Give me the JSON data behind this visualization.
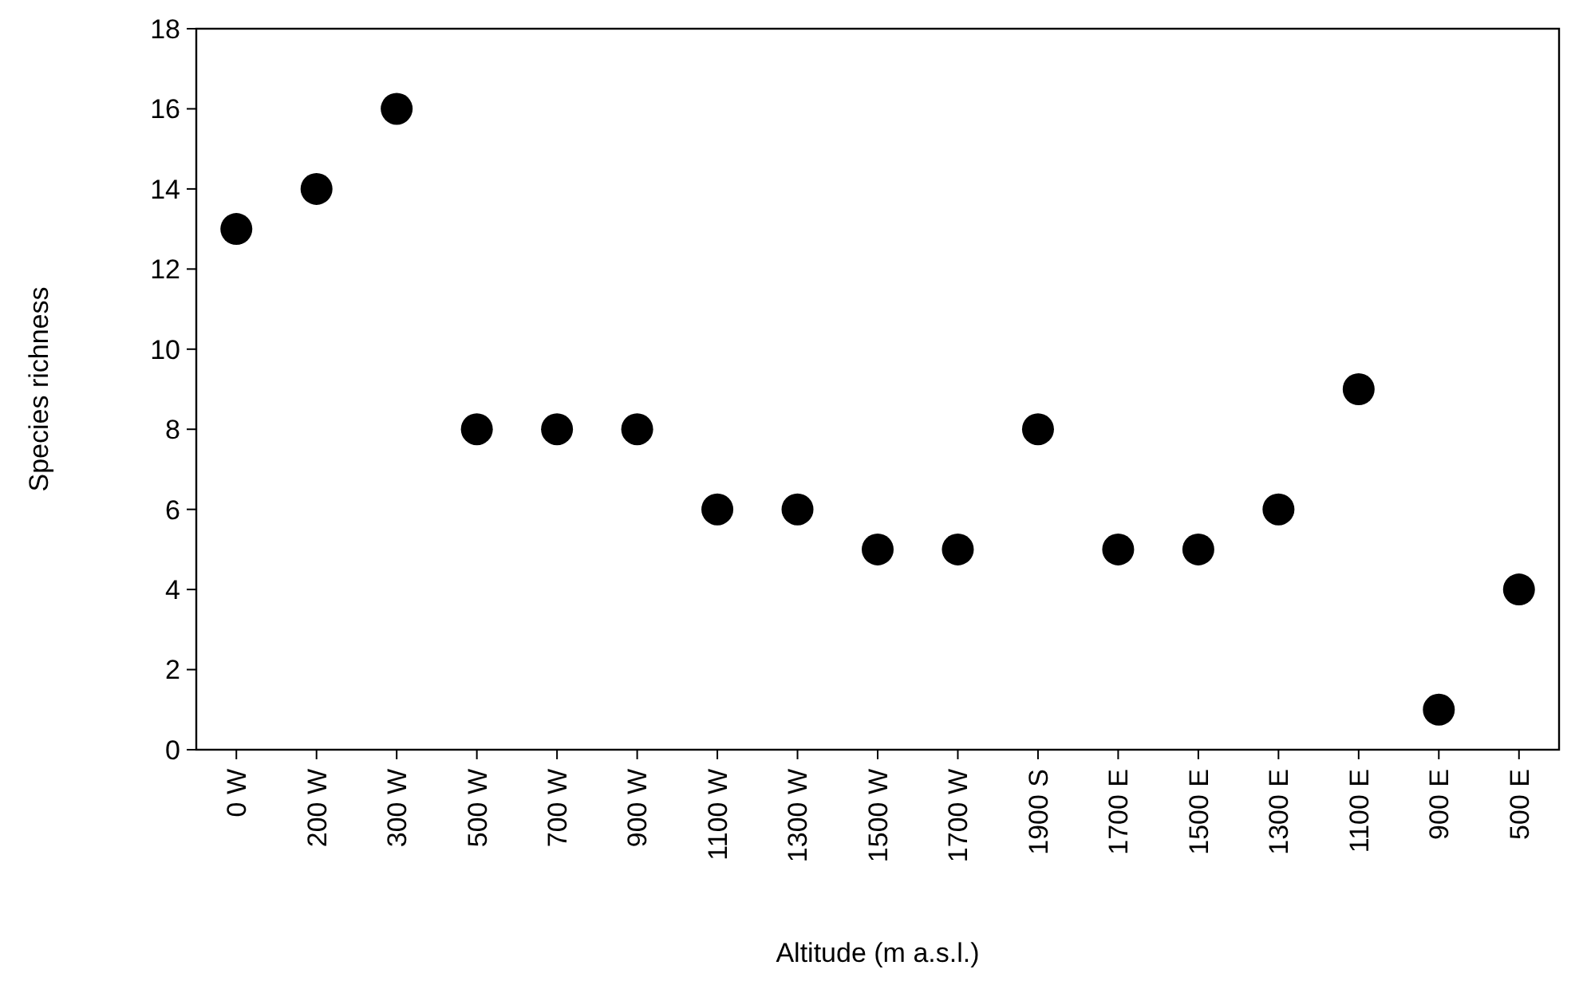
{
  "chart_data": {
    "type": "scatter",
    "xlabel": "Altitude (m a.s.l.)",
    "ylabel": "Species richness",
    "categories": [
      "0 W",
      "200 W",
      "300 W",
      "500 W",
      "700 W",
      "900 W",
      "1100 W",
      "1300 W",
      "1500 W",
      "1700 W",
      "1900 S",
      "1700 E",
      "1500 E",
      "1300 E",
      "1100 E",
      "900 E",
      "500 E"
    ],
    "series": [
      {
        "color": "#000000",
        "values": [
          13,
          14,
          16,
          8,
          8,
          8,
          6,
          6,
          5,
          5,
          8,
          5,
          5,
          6,
          9,
          1,
          4
        ]
      }
    ],
    "ylim": [
      0,
      18
    ],
    "yticks": [
      0,
      2,
      4,
      6,
      8,
      10,
      12,
      14,
      16,
      18
    ],
    "marker": "circle",
    "grid": false
  }
}
